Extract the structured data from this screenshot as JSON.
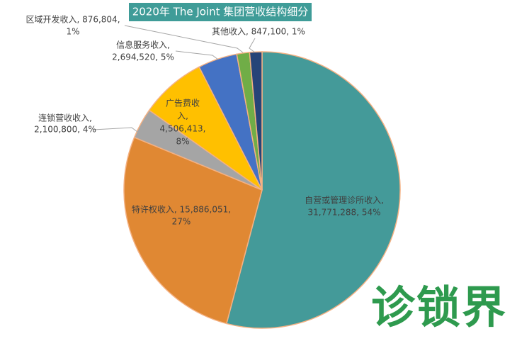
{
  "chart_data": {
    "type": "pie",
    "title": "2020年 The Joint 集团营收结构细分",
    "values": [
      31771288,
      15886051,
      2100800,
      4506413,
      2694520,
      876804,
      847100
    ],
    "labels": [
      [
        "自营或管理诊所收入,",
        "31,771,288, 54%"
      ],
      [
        "特许权收入, 15,886,051,",
        "27%"
      ],
      [
        "连锁营收收入,",
        "2,100,800, 4%"
      ],
      [
        "广告费收",
        "入,",
        "4,506,413,",
        "8%"
      ],
      [
        "信息服务收入,",
        "2,694,520, 5%"
      ],
      [
        "区域开发收入, 876,804,",
        "1%"
      ],
      [
        "其他收入, 847,100, 1%"
      ]
    ],
    "colors": [
      "#449a99",
      "#e08833",
      "#a5a5a5",
      "#ffc000",
      "#4472c4",
      "#70ad47",
      "#264478"
    ],
    "watermark": "诊锁界"
  }
}
